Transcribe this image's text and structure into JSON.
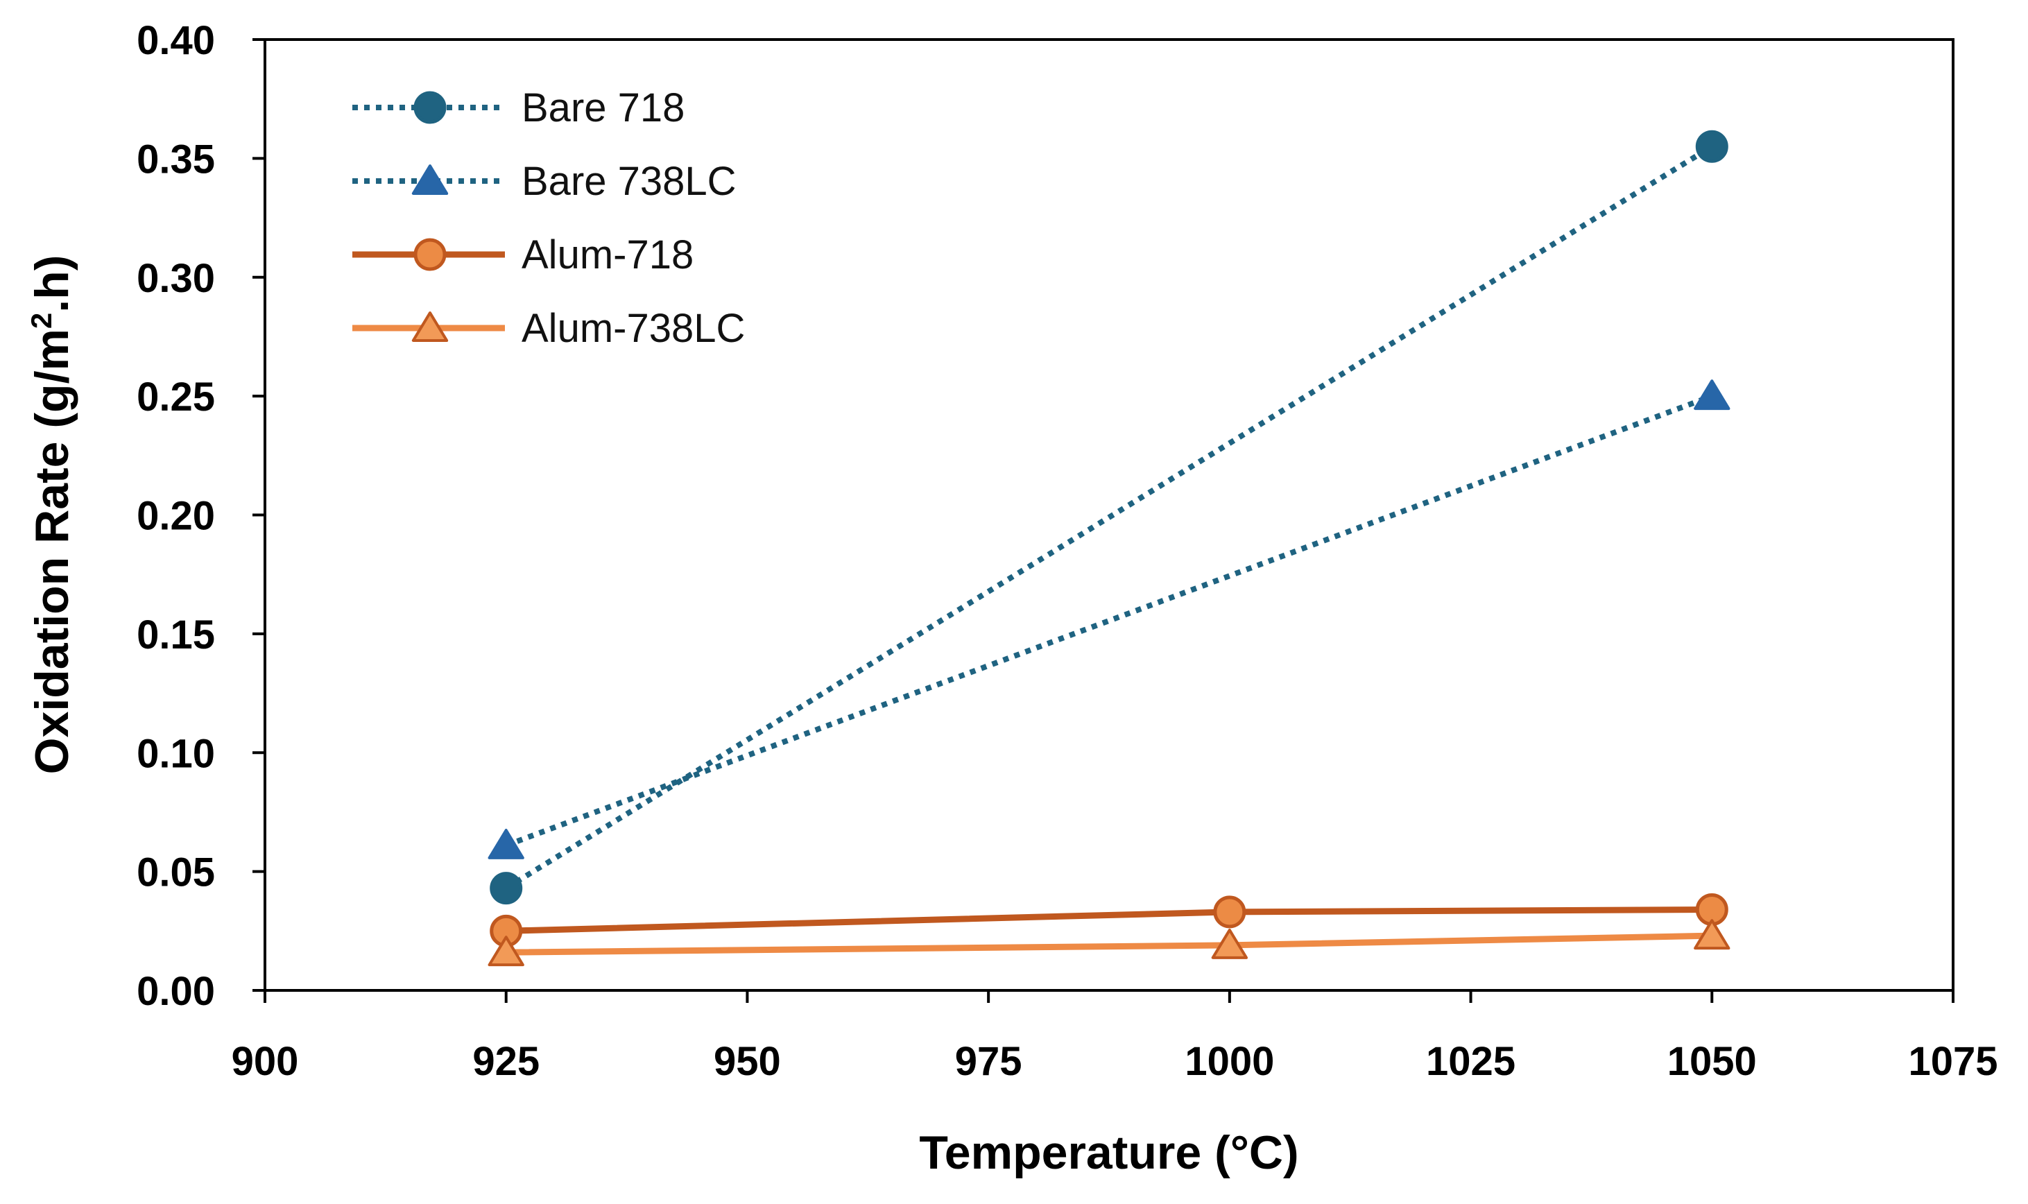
{
  "chart_data": {
    "type": "line",
    "title": "",
    "xlabel": "Temperature (°C)",
    "ylabel_main": "Oxidation Rate (g/m",
    "ylabel_sup": "2",
    "ylabel_tail": ".h)",
    "xlim": [
      900,
      1075
    ],
    "ylim": [
      0,
      0.4
    ],
    "x_ticks": [
      900,
      925,
      950,
      975,
      1000,
      1025,
      1050,
      1075
    ],
    "x_tick_labels": [
      "900",
      "925",
      "950",
      "975",
      "1000",
      "1025",
      "1050",
      "1075"
    ],
    "y_ticks": [
      0,
      0.05,
      0.1,
      0.15,
      0.2,
      0.25,
      0.3,
      0.35,
      0.4
    ],
    "y_tick_labels": [
      "0.00",
      "0.05",
      "0.10",
      "0.15",
      "0.20",
      "0.25",
      "0.30",
      "0.35",
      "0.40"
    ],
    "grid": false,
    "legend_position": "top-left",
    "series": [
      {
        "name": "Bare 718",
        "marker": "circle",
        "line_style": "dotted",
        "color": "#1f6381",
        "marker_fill": "#1f6381",
        "marker_stroke": "#1f6381",
        "points": [
          {
            "x": 925,
            "y": 0.043
          },
          {
            "x": 1050,
            "y": 0.355
          }
        ]
      },
      {
        "name": "Bare 738LC",
        "marker": "triangle",
        "line_style": "dotted",
        "color": "#1f6381",
        "marker_fill": "#2766a8",
        "marker_stroke": "#2766a8",
        "points": [
          {
            "x": 925,
            "y": 0.061
          },
          {
            "x": 1050,
            "y": 0.25
          }
        ]
      },
      {
        "name": "Alum-718",
        "marker": "circle",
        "line_style": "solid",
        "color": "#c0581f",
        "marker_fill": "#ec8b45",
        "marker_stroke": "#c0581f",
        "points": [
          {
            "x": 925,
            "y": 0.025
          },
          {
            "x": 1000,
            "y": 0.033
          },
          {
            "x": 1050,
            "y": 0.034
          }
        ]
      },
      {
        "name": "Alum-738LC",
        "marker": "triangle",
        "line_style": "solid",
        "color": "#ee8a45",
        "marker_fill": "#f29a57",
        "marker_stroke": "#c0581f",
        "points": [
          {
            "x": 925,
            "y": 0.016
          },
          {
            "x": 1000,
            "y": 0.019
          },
          {
            "x": 1050,
            "y": 0.023
          }
        ]
      }
    ]
  }
}
